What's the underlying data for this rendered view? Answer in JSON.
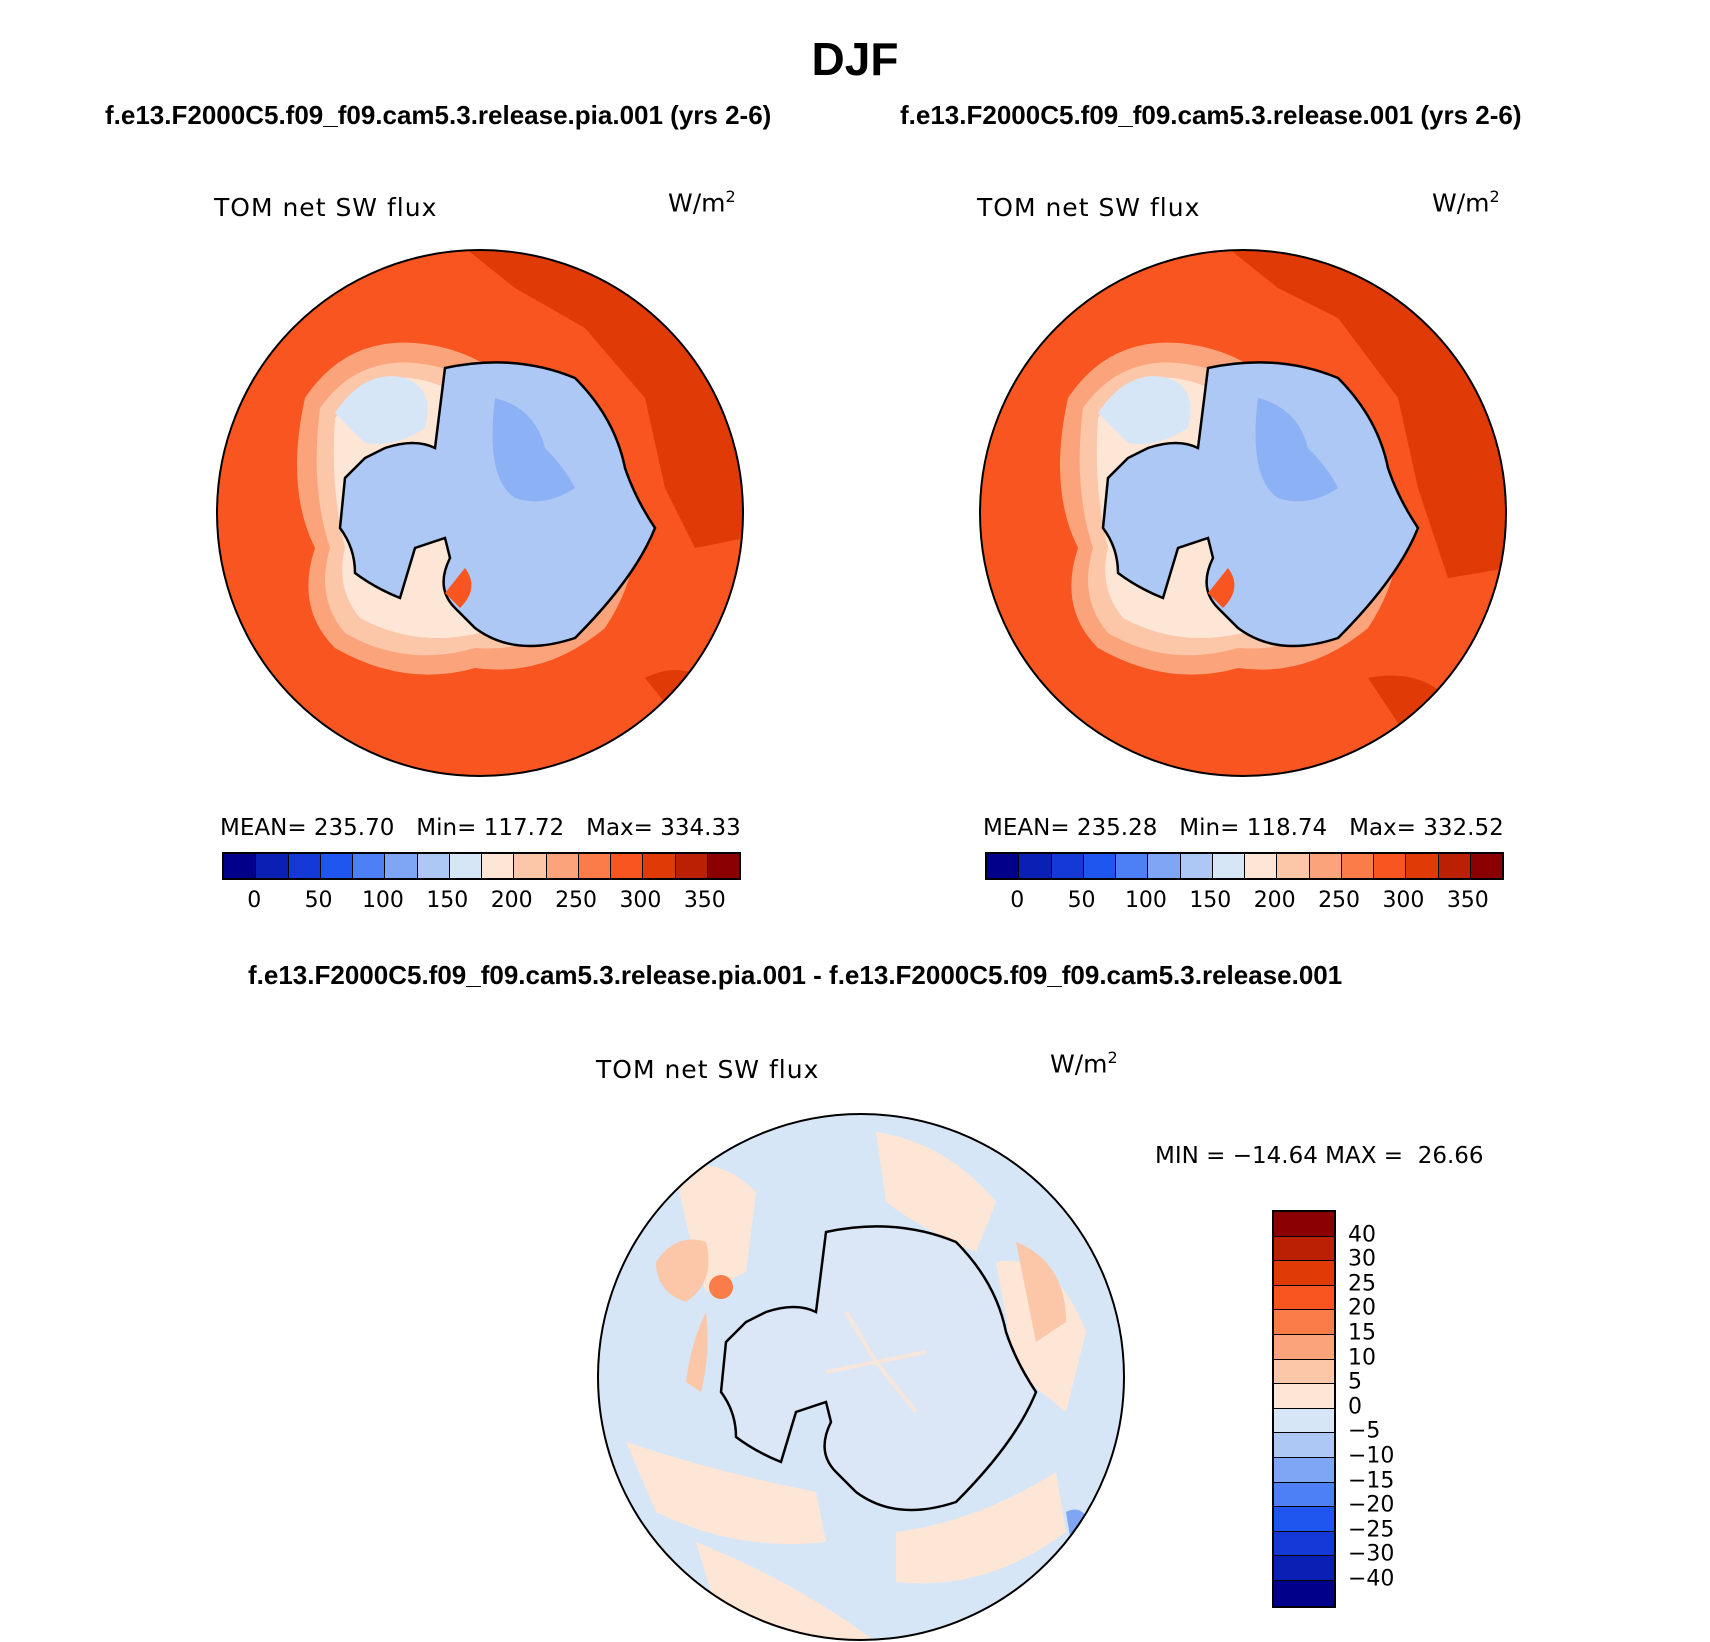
{
  "figure": {
    "title": "DJF",
    "case_left": "f.e13.F2000C5.f09_f09.cam5.3.release.pia.001 (yrs 2-6)",
    "case_right": "f.e13.F2000C5.f09_f09.cam5.3.release.001 (yrs 2-6)",
    "diff_title": "f.e13.F2000C5.f09_f09.cam5.3.release.pia.001 - f.e13.F2000C5.f09_f09.cam5.3.release.001"
  },
  "panels": {
    "left": {
      "label": "TOM net SW flux",
      "units": "W/m",
      "units_exp": "2",
      "stats": "MEAN= 235.70   Min= 117.72   Max= 334.33"
    },
    "right": {
      "label": "TOM net SW flux",
      "units": "W/m",
      "units_exp": "2",
      "stats": "MEAN= 235.28   Min= 118.74   Max= 332.52"
    },
    "diff": {
      "label": "TOM net SW flux",
      "units": "W/m",
      "units_exp": "2",
      "stats": "MIN = −14.64 MAX =  26.66"
    }
  },
  "colorbars": {
    "abs": {
      "ticks": [
        "0",
        "50",
        "100",
        "150",
        "200",
        "250",
        "300",
        "350"
      ],
      "colors": [
        "#00008b",
        "#0a1fb3",
        "#1539d6",
        "#1f56f0",
        "#4d80f5",
        "#7ea6f5",
        "#aec8f5",
        "#d6e6f7",
        "#fde6d6",
        "#fcc6a8",
        "#fba47c",
        "#fa7c48",
        "#f95520",
        "#e03a06",
        "#bb1f04",
        "#8b0000"
      ]
    },
    "diff": {
      "ticks": [
        "40",
        "30",
        "25",
        "20",
        "15",
        "10",
        "5",
        "0",
        "−5",
        "−10",
        "−15",
        "−20",
        "−25",
        "−30",
        "−40"
      ],
      "colors": [
        "#8b0000",
        "#bb1f04",
        "#e03a06",
        "#f95520",
        "#fa7c48",
        "#fba47c",
        "#fcc6a8",
        "#fde6d6",
        "#d6e6f7",
        "#aec8f5",
        "#7ea6f5",
        "#4d80f5",
        "#1f56f0",
        "#1539d6",
        "#0a1fb3",
        "#00008b"
      ]
    }
  }
}
